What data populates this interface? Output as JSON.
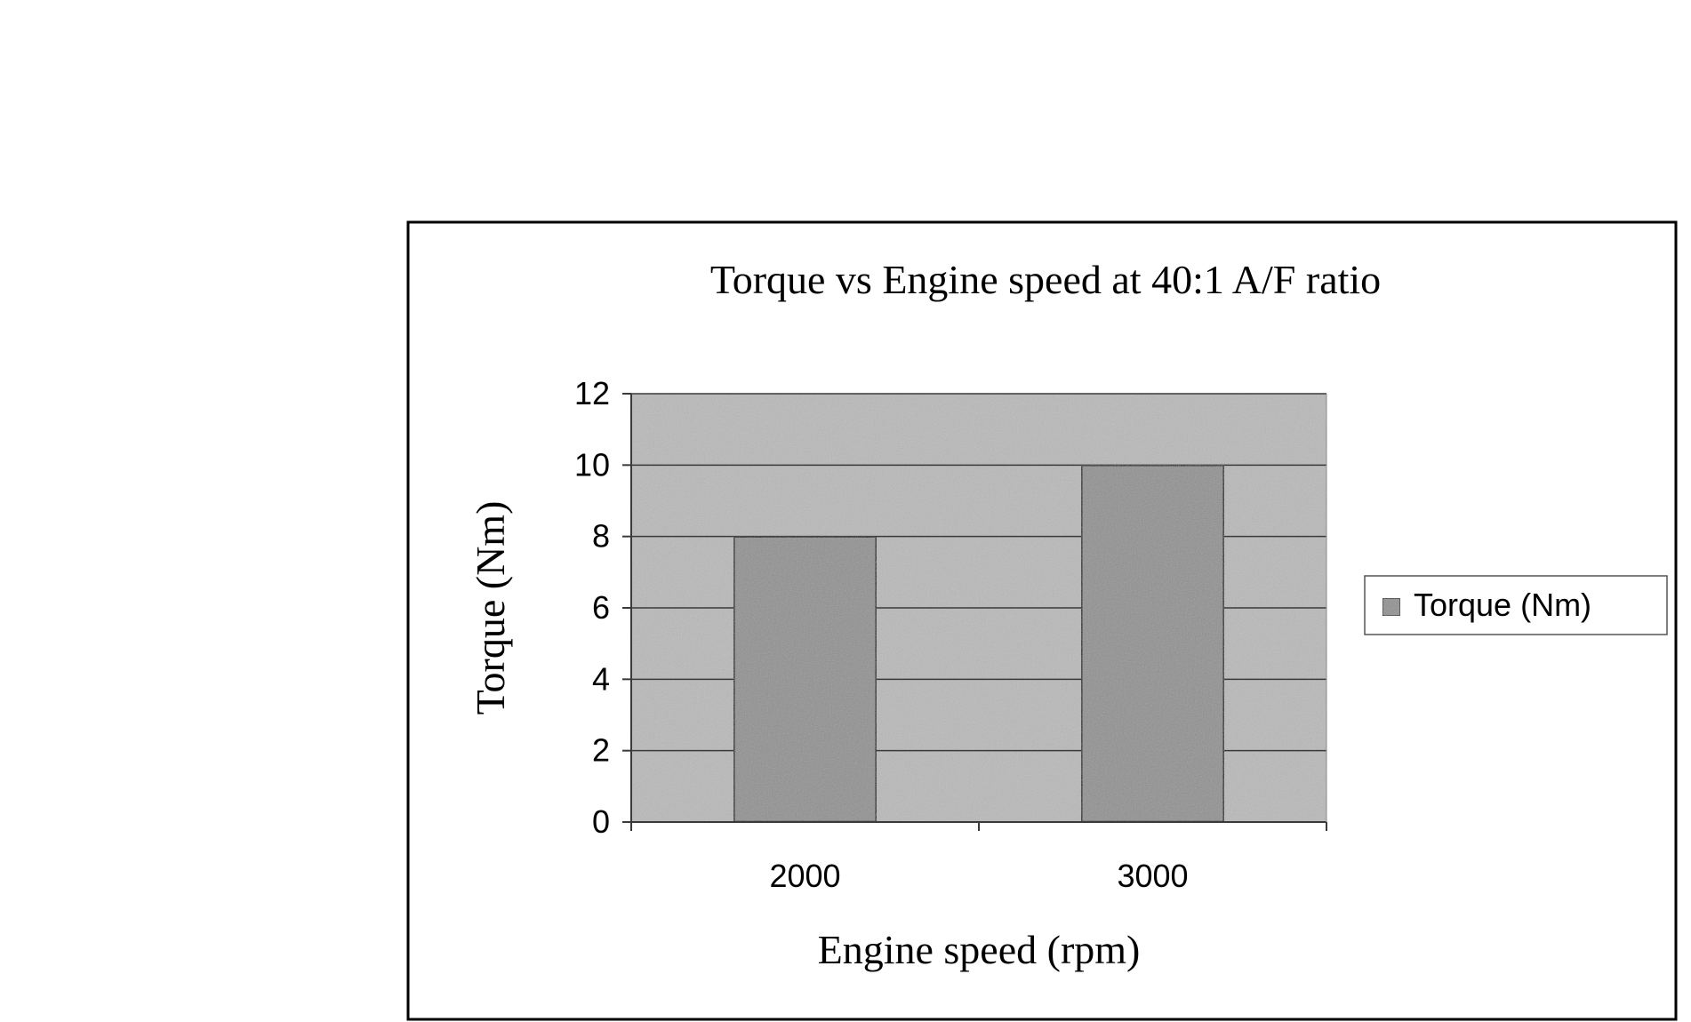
{
  "chart_data": {
    "type": "bar",
    "title": "Torque vs Engine speed at 40:1 A/F ratio",
    "xlabel": "Engine speed (rpm)",
    "ylabel": "Torque (Nm)",
    "categories": [
      "2000",
      "3000"
    ],
    "series": [
      {
        "name": "Torque (Nm)",
        "values": [
          8,
          10
        ]
      }
    ],
    "ylim": [
      0,
      12
    ],
    "yticks": [
      0,
      2,
      4,
      6,
      8,
      10,
      12
    ],
    "grid": true,
    "legend": "right",
    "colors": {
      "plot_background": "#b9b9b9",
      "bar_fill": "#8f8f8f",
      "gridline": "#3a3a3a",
      "frame": "#000000"
    }
  }
}
